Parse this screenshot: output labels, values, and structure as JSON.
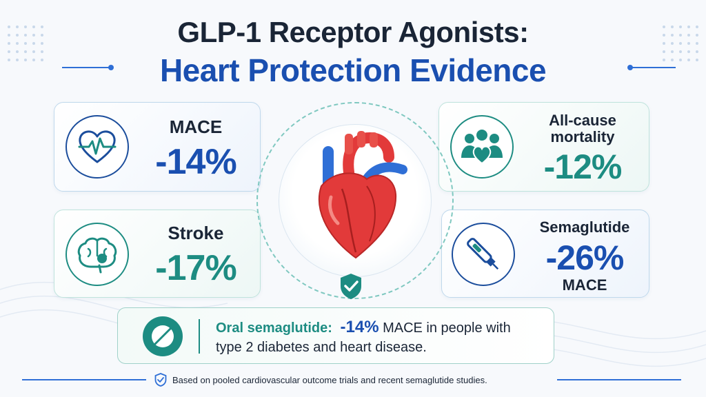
{
  "title": {
    "line1": "GLP-1 Receptor Agonists:",
    "line2": "Heart Protection Evidence"
  },
  "cards": {
    "mace": {
      "label": "MACE",
      "value": "-14%",
      "icon": "heartbeat-icon"
    },
    "stroke": {
      "label": "Stroke",
      "value": "-17%",
      "icon": "brain-icon"
    },
    "mortality": {
      "label_line1": "All-cause",
      "label_line2": "mortality",
      "value": "-12%",
      "icon": "people-heart-icon"
    },
    "semaglutide": {
      "label": "Semaglutide",
      "value": "-26%",
      "sublabel": "MACE",
      "icon": "injection-pen-icon"
    }
  },
  "center": {
    "icon": "heart-icon",
    "badge_icon": "shield-check-icon"
  },
  "banner": {
    "icon": "pill-icon",
    "label": "Oral semaglutide:",
    "value": "-14%",
    "text_line1": " MACE in people with",
    "text_line2": "type 2 diabetes and heart disease."
  },
  "footer": {
    "icon": "shield-check-icon",
    "text": "Based on pooled cardiovascular outcome trials and recent semaglutide studies."
  },
  "colors": {
    "navy": "#1a2536",
    "blue": "#1a4fb0",
    "teal": "#1d8c82",
    "heart_red": "#e23a3a",
    "vessel_blue": "#2f6fd6"
  }
}
